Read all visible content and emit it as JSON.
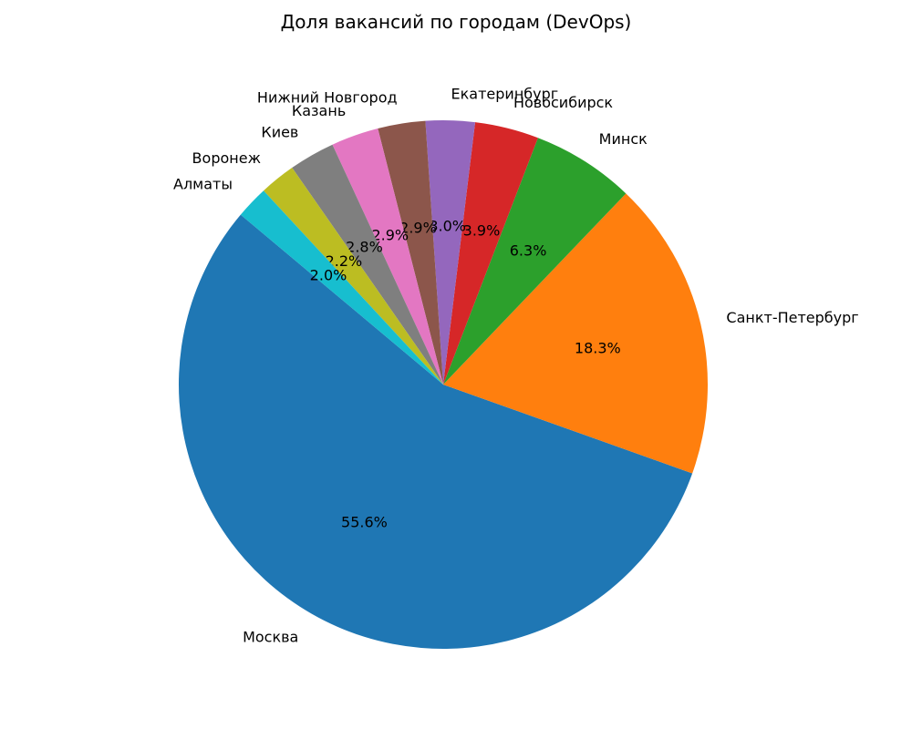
{
  "chart_data": {
    "type": "pie",
    "title": "Доля вакансий по городам (DevOps)",
    "categories": [
      "Москва",
      "Санкт-Петербург",
      "Минск",
      "Новосибирск",
      "Екатеринбург",
      "Нижний Новгород",
      "Казань",
      "Киев",
      "Воронеж",
      "Алматы"
    ],
    "values": [
      55.6,
      18.3,
      6.3,
      3.9,
      3.0,
      2.9,
      2.9,
      2.8,
      2.2,
      2.0
    ],
    "percent_labels": [
      "55.6%",
      "18.3%",
      "6.3%",
      "3.9%",
      "3.0%",
      "2.9%",
      "2.9%",
      "2.8%",
      "2.2%",
      "2.0%"
    ],
    "colors": [
      "#1f77b4",
      "#ff7f0e",
      "#2ca02c",
      "#d62728",
      "#9467bd",
      "#8c564b",
      "#e377c2",
      "#7f7f7f",
      "#bcbd22",
      "#17becf"
    ],
    "start_angle": 140,
    "direction": "counterclockwise",
    "legend": "none"
  }
}
